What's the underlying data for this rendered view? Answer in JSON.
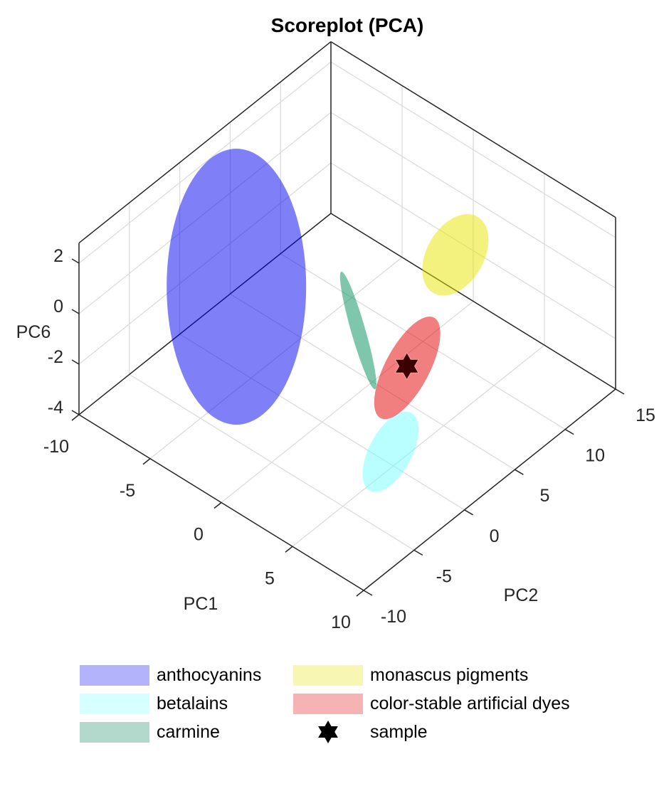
{
  "chart_data": {
    "type": "scatter3d",
    "title": "Scoreplot (PCA)",
    "xlabel": "PC1",
    "ylabel": "PC2",
    "zlabel": "PC6",
    "xlim": [
      -10,
      10
    ],
    "ylim": [
      -10,
      15
    ],
    "zlim": [
      -4,
      2.8
    ],
    "xticks": [
      "-10",
      "-5",
      "0",
      "5",
      "10"
    ],
    "yticks": [
      "-10",
      "-5",
      "0",
      "5",
      "10",
      "15"
    ],
    "zticks": [
      "-4",
      "-2",
      "0",
      "2"
    ],
    "grid": true,
    "legend_position": "bottom",
    "series": [
      {
        "name": "anthocyanins",
        "kind": "confidence-ellipse",
        "color": "#0000f0",
        "alpha": 0.5,
        "legend_color": "#b3b3fb",
        "center": {
          "PC1": -5.1,
          "PC2": -1.3,
          "PC6": 0
        }
      },
      {
        "name": "betalains",
        "kind": "confidence-ellipse",
        "color": "#73ffff",
        "alpha": 0.5,
        "legend_color": "#d6ffff",
        "center": {
          "PC1": 9.2,
          "PC2": -6.2,
          "PC6": 0
        }
      },
      {
        "name": "carmine",
        "kind": "confidence-ellipse",
        "color": "#008f5a",
        "alpha": 0.5,
        "legend_color": "#b3d9cc",
        "center": {
          "PC1": 1.9,
          "PC2": 0.9,
          "PC6": 0
        }
      },
      {
        "name": "monascus pigments",
        "kind": "confidence-ellipse",
        "color": "#e8e600",
        "alpha": 0.5,
        "legend_color": "#f7f7b3",
        "center": {
          "PC1": 2.0,
          "PC2": 10.4,
          "PC6": 0
        }
      },
      {
        "name": "color-stable artificial dyes",
        "kind": "confidence-ellipse",
        "color": "#e60000",
        "alpha": 0.5,
        "legend_color": "#f6b3b3",
        "center": {
          "PC1": 5.7,
          "PC2": 0.4,
          "PC6": 0
        }
      },
      {
        "name": "sample",
        "kind": "marker",
        "marker": "hexagram",
        "color": "#3d0000",
        "point": {
          "PC1": 5.6,
          "PC2": 0.5,
          "PC6": 0
        }
      }
    ]
  }
}
